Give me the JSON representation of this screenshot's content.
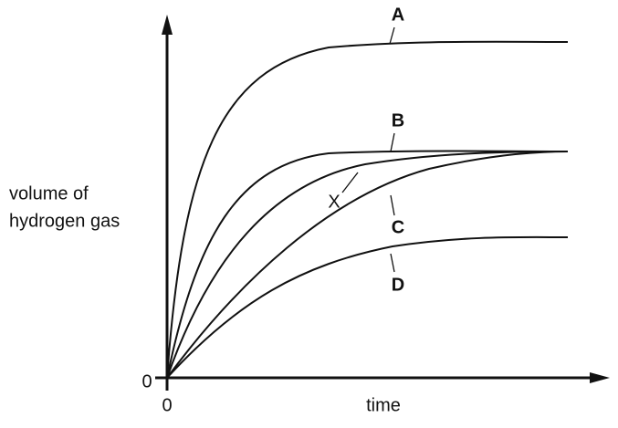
{
  "axes": {
    "y_label": [
      "volume of",
      "hydrogen gas"
    ],
    "x_label": "time",
    "y_origin": "0",
    "x_origin": "0"
  },
  "curves": [
    {
      "label": "A"
    },
    {
      "label": "B"
    },
    {
      "label": "X"
    },
    {
      "label": "C"
    },
    {
      "label": "D"
    }
  ]
}
